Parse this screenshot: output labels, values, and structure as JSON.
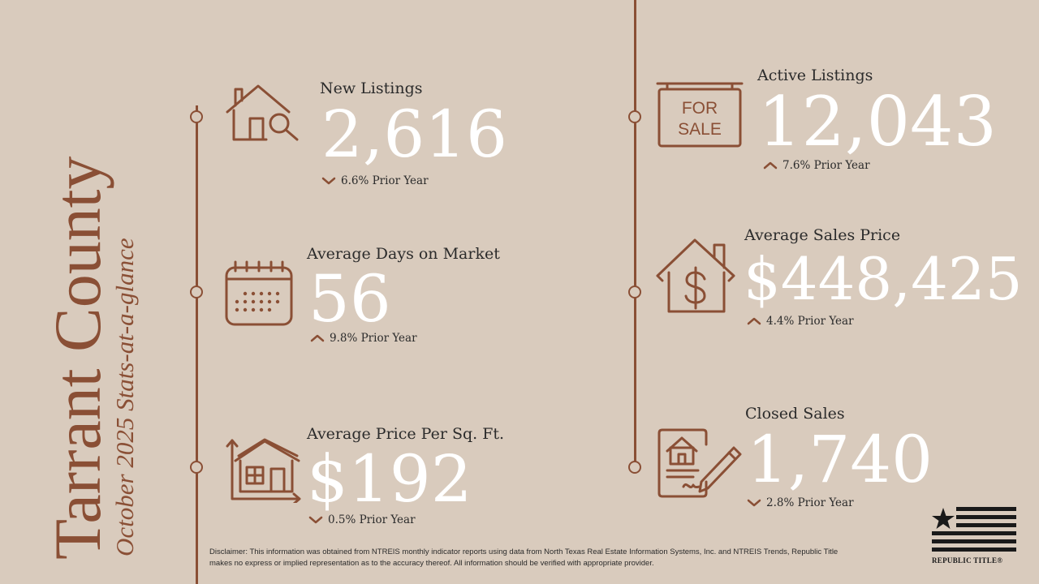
{
  "title": {
    "county": "Tarrant County",
    "subtitle": "October 2025 Stats-at-a-glance"
  },
  "colors": {
    "background": "#d9cbbd",
    "accent": "#8a4f35",
    "value_text": "#ffffff",
    "body_text": "#2b2b2b"
  },
  "stats": {
    "new_listings": {
      "label": "New Listings",
      "value": "2,616",
      "change": "6.6% Prior Year",
      "direction": "down",
      "icon": "house-search-icon"
    },
    "days_on_market": {
      "label": "Average Days on Market",
      "value": "56",
      "change": "9.8% Prior Year",
      "direction": "up",
      "icon": "calendar-icon"
    },
    "price_per_sqft": {
      "label": "Average Price Per Sq. Ft.",
      "value": "$192",
      "change": "0.5% Prior Year",
      "direction": "down",
      "icon": "house-area-icon"
    },
    "active_listings": {
      "label": "Active Listings",
      "value": "12,043",
      "change": "7.6% Prior Year",
      "direction": "up",
      "icon": "for-sale-sign-icon"
    },
    "sales_price": {
      "label": "Average Sales Price",
      "value": "$448,425",
      "change": "4.4% Prior Year",
      "direction": "up",
      "icon": "house-dollar-icon"
    },
    "closed_sales": {
      "label": "Closed Sales",
      "value": "1,740",
      "change": "2.8% Prior Year",
      "direction": "down",
      "icon": "contract-signing-icon"
    }
  },
  "sign_text": {
    "line1": "FOR",
    "line2": "SALE"
  },
  "disclaimer": "Disclaimer: This information was obtained from NTREIS monthly indicator reports using data from North Texas Real Estate Information Systems, Inc. and NTREIS Trends, Republic Title makes no express or implied representation as to the accuracy thereof. All information should be verified with appropriate provider.",
  "logo": {
    "text": "REPUBLIC TITLE®"
  }
}
